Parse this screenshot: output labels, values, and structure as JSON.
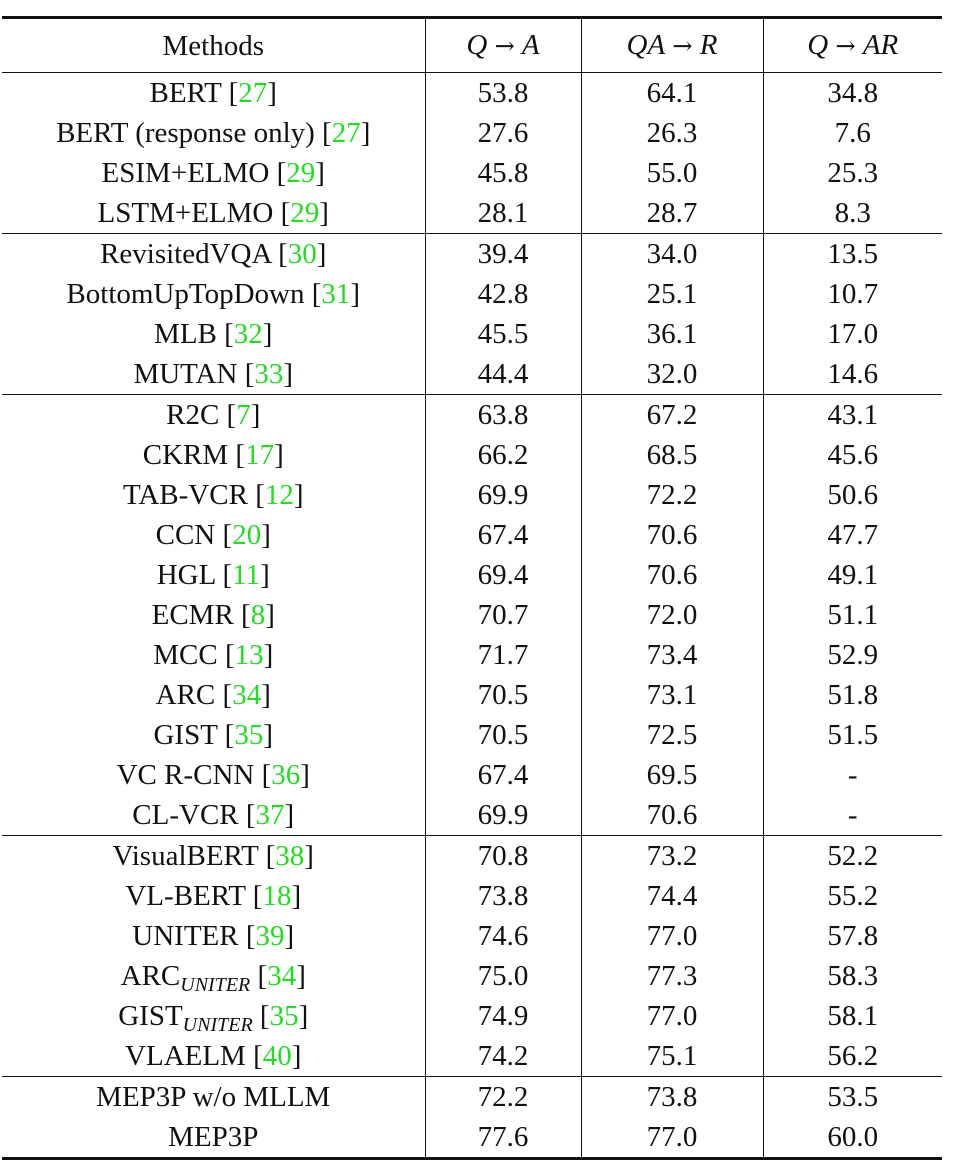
{
  "columns": [
    {
      "id": "methods",
      "label": "Methods"
    },
    {
      "id": "qa",
      "from": "Q",
      "arrow": "→",
      "to": "A"
    },
    {
      "id": "qar",
      "from": "QA",
      "arrow": "→",
      "to": "R"
    },
    {
      "id": "qtoar",
      "from": "Q",
      "arrow": "→",
      "to": "AR"
    }
  ],
  "groups": [
    {
      "rows": [
        {
          "name": "BERT",
          "sub": "",
          "ref": "27",
          "values": [
            "53.8",
            "64.1",
            "34.8"
          ],
          "bold": []
        },
        {
          "name": "BERT (response only)",
          "sub": "",
          "ref": "27",
          "values": [
            "27.6",
            "26.3",
            "7.6"
          ],
          "bold": []
        },
        {
          "name": "ESIM+ELMO",
          "sub": "",
          "ref": "29",
          "values": [
            "45.8",
            "55.0",
            "25.3"
          ],
          "bold": []
        },
        {
          "name": "LSTM+ELMO",
          "sub": "",
          "ref": "29",
          "values": [
            "28.1",
            "28.7",
            "8.3"
          ],
          "bold": []
        }
      ]
    },
    {
      "rows": [
        {
          "name": "RevisitedVQA",
          "sub": "",
          "ref": "30",
          "values": [
            "39.4",
            "34.0",
            "13.5"
          ],
          "bold": []
        },
        {
          "name": "BottomUpTopDown",
          "sub": "",
          "ref": "31",
          "values": [
            "42.8",
            "25.1",
            "10.7"
          ],
          "bold": []
        },
        {
          "name": "MLB",
          "sub": "",
          "ref": "32",
          "values": [
            "45.5",
            "36.1",
            "17.0"
          ],
          "bold": []
        },
        {
          "name": "MUTAN",
          "sub": "",
          "ref": "33",
          "values": [
            "44.4",
            "32.0",
            "14.6"
          ],
          "bold": []
        }
      ]
    },
    {
      "rows": [
        {
          "name": "R2C",
          "sub": "",
          "ref": "7",
          "values": [
            "63.8",
            "67.2",
            "43.1"
          ],
          "bold": []
        },
        {
          "name": "CKRM ",
          "sub": "",
          "ref": "17",
          "values": [
            "66.2",
            "68.5",
            "45.6"
          ],
          "bold": []
        },
        {
          "name": "TAB-VCR",
          "sub": "",
          "ref": "12",
          "values": [
            "69.9",
            "72.2",
            "50.6"
          ],
          "bold": []
        },
        {
          "name": "CCN",
          "sub": "",
          "ref": "20",
          "values": [
            "67.4",
            "70.6",
            "47.7"
          ],
          "bold": []
        },
        {
          "name": "HGL",
          "sub": "",
          "ref": "11",
          "values": [
            "69.4",
            "70.6",
            "49.1"
          ],
          "bold": []
        },
        {
          "name": "ECMR",
          "sub": "",
          "ref": "8",
          "values": [
            "70.7",
            "72.0",
            "51.1"
          ],
          "bold": []
        },
        {
          "name": "MCC",
          "sub": "",
          "ref": "13",
          "values": [
            "71.7",
            "73.4",
            "52.9"
          ],
          "bold": []
        },
        {
          "name": "ARC",
          "sub": "",
          "ref": "34",
          "values": [
            "70.5",
            "73.1",
            "51.8"
          ],
          "bold": []
        },
        {
          "name": "GIST",
          "sub": "",
          "ref": "35",
          "values": [
            "70.5",
            "72.5",
            "51.5"
          ],
          "bold": []
        },
        {
          "name": "VC R-CNN",
          "sub": "",
          "ref": "36",
          "values": [
            "67.4",
            "69.5",
            "-"
          ],
          "bold": []
        },
        {
          "name": "CL-VCR",
          "sub": "",
          "ref": "37",
          "values": [
            "69.9",
            "70.6",
            "-"
          ],
          "bold": []
        }
      ]
    },
    {
      "rows": [
        {
          "name": "VisualBERT",
          "sub": "",
          "ref": "38",
          "values": [
            "70.8",
            "73.2",
            "52.2"
          ],
          "bold": []
        },
        {
          "name": "VL-BERT",
          "sub": "",
          "ref": "18",
          "values": [
            "73.8",
            "74.4",
            "55.2"
          ],
          "bold": []
        },
        {
          "name": "UNITER",
          "sub": "",
          "ref": "39",
          "values": [
            "74.6",
            "77.0",
            "57.8"
          ],
          "bold": []
        },
        {
          "name": "ARC",
          "sub": "UNITER",
          "ref": "34",
          "values": [
            "75.0",
            "77.3",
            "58.3"
          ],
          "bold": [
            1
          ]
        },
        {
          "name": "GIST",
          "sub": "UNITER",
          "ref": "35",
          "values": [
            "74.9",
            "77.0",
            "58.1"
          ],
          "bold": []
        },
        {
          "name": "VLAELM",
          "sub": "",
          "ref": "40",
          "values": [
            "74.2",
            "75.1",
            "56.2"
          ],
          "bold": []
        }
      ]
    },
    {
      "rows": [
        {
          "name": "MEP3P w/o MLLM",
          "sub": "",
          "ref": "",
          "values": [
            "72.2",
            "73.8",
            "53.5"
          ],
          "bold": []
        },
        {
          "name": "MEP3P",
          "sub": "",
          "ref": "",
          "values": [
            "77.6",
            "77.0",
            "60.0"
          ],
          "bold": [
            0,
            2
          ]
        }
      ]
    }
  ]
}
